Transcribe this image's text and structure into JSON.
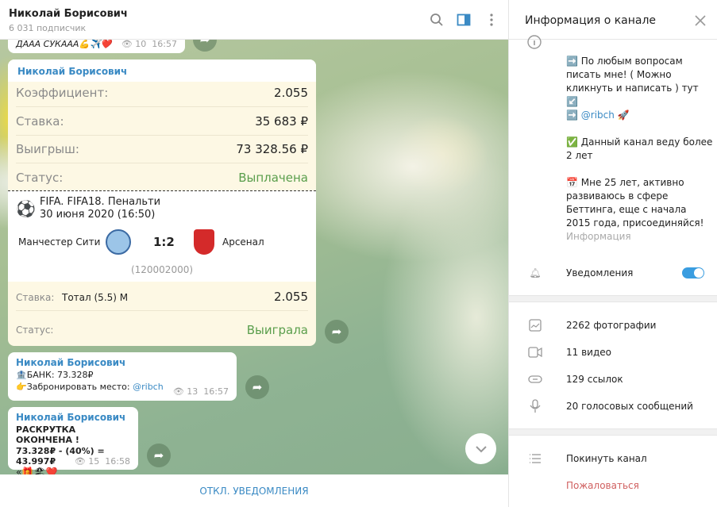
{
  "header": {
    "title": "Николай Борисович",
    "subtitle": "6 031 подписчик",
    "icons": [
      "search-icon",
      "sidebar-toggle-icon",
      "more-vertical-icon"
    ]
  },
  "messages": [
    {
      "text": "ДААА СУКААА💪✈️❤️",
      "views": "10",
      "time": "16:57"
    },
    {
      "author": "Николай Борисович",
      "rows": [
        {
          "label": "Коэффициент:",
          "value": "2.055"
        },
        {
          "label": "Ставка:",
          "value": "35 683 ₽"
        },
        {
          "label": "Выигрыш:",
          "value": "73 328.56 ₽"
        },
        {
          "label": "Статус:",
          "value": "Выплачена"
        }
      ],
      "event": {
        "title": "FIFA. FIFA18. Пенальти",
        "date": "30 июня 2020 (16:50)",
        "home": "Манчестер Сити",
        "score": "1:2",
        "away": "Арсенал",
        "code": "(120002000)",
        "bet_label": "Ставка:",
        "bet": "Тотал (5.5) М",
        "odds": "2.055",
        "status_label": "Статус:",
        "status": "Выиграла"
      }
    },
    {
      "author": "Николай Борисович",
      "line1": "🏦БАНК: 73.328₽",
      "line2_prefix": "👉Забронировать место: ",
      "line2_link": "@ribch",
      "views": "13",
      "time": "16:57"
    },
    {
      "author": "Николай Борисович",
      "line1": "РАСКРУТКА ОКОНЧЕНА !",
      "line2": "73.328₽ - (40%) = 43.997₽",
      "line3": "«🎁🏖❤️",
      "views": "15",
      "time": "16:58"
    }
  ],
  "bottom_button": "ОТКЛ. УВЕДОМЛЕНИЯ",
  "colors": {
    "accent": "#3a8ac4",
    "win": "#5a9e4c",
    "danger": "#d06060"
  },
  "panel": {
    "title": "Информация о канале",
    "desc": {
      "p1": "➡️ По любым вопросам писать мне! ( Можно кликнуть и написать ) тут ↙️",
      "p1b_prefix": "➡️ ",
      "p1b_link": "@ribch",
      "p1b_suffix": " 🚀",
      "p2": "✅ Данный канал веду более 2 лет",
      "p3": "📅 Мне 25 лет, активно развиваюсь в сфере Беттинга, еще с начала 2015 года, присоединяйся!"
    },
    "info_label": "Информация",
    "notifications": {
      "label": "Уведомления",
      "enabled": true
    },
    "media": [
      "2262 фотографии",
      "11 видео",
      "129 ссылок",
      "20 голосовых сообщений"
    ],
    "leave": "Покинуть канал",
    "report": "Пожаловаться"
  }
}
